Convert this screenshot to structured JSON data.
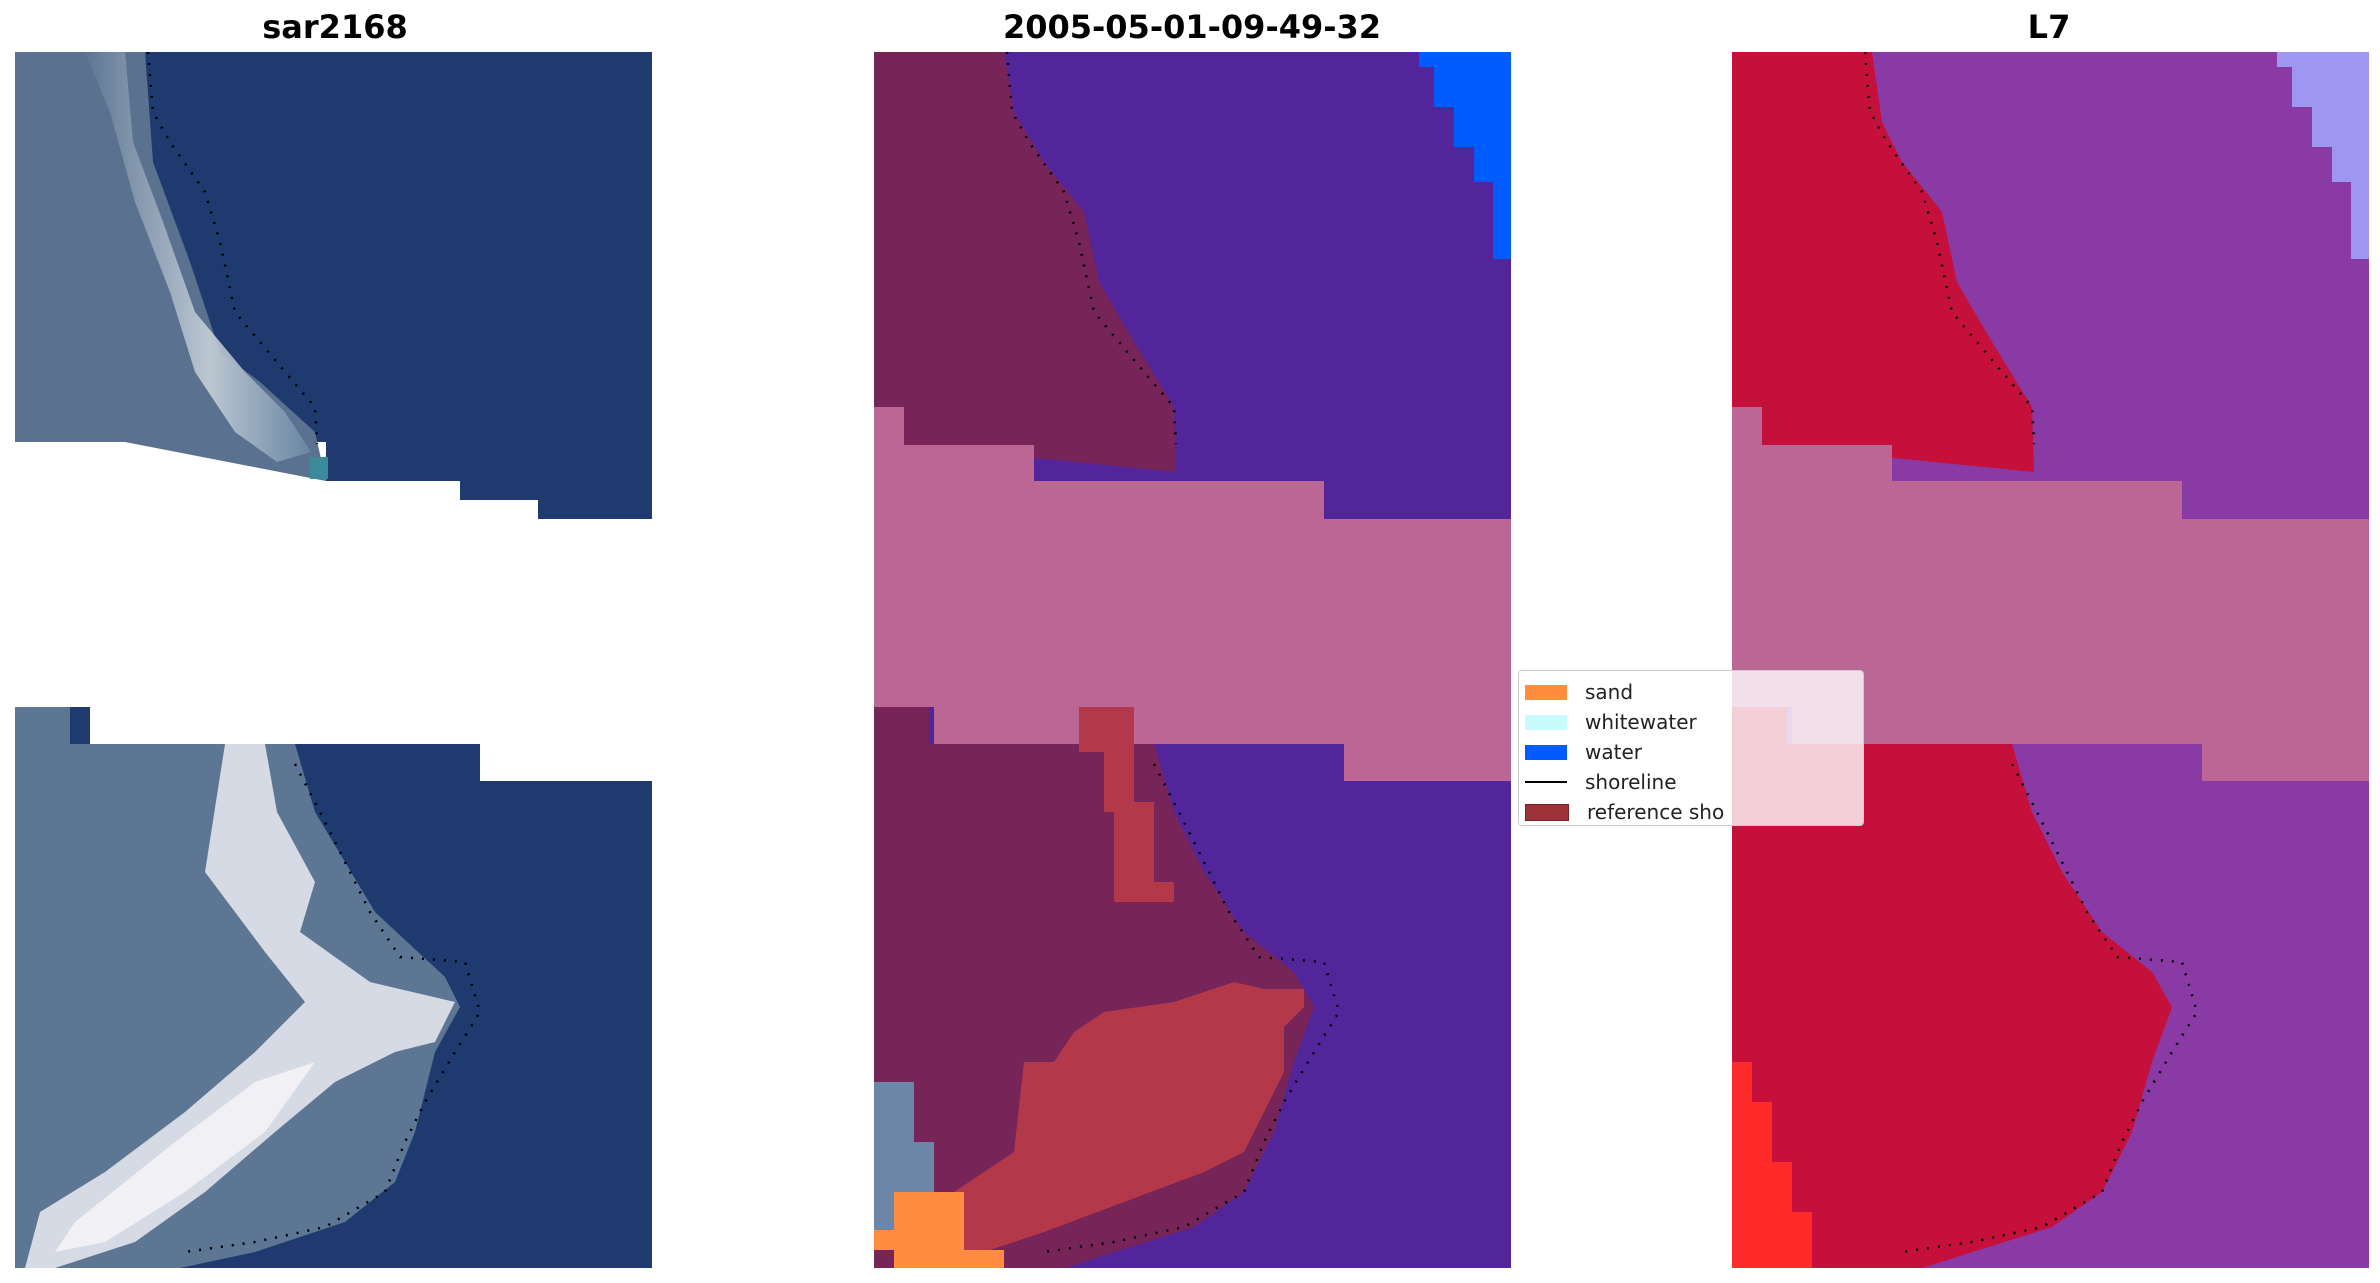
{
  "titles": {
    "left": "sar2168",
    "middle": "2005-05-01-09-49-32",
    "right": "L7"
  },
  "legend": {
    "items": [
      {
        "label": "sand",
        "color": "#ff8c3f",
        "kind": "patch"
      },
      {
        "label": "whitewater",
        "color": "#c8fbfb",
        "kind": "patch"
      },
      {
        "label": "water",
        "color": "#005cff",
        "kind": "patch"
      },
      {
        "label": "shoreline",
        "color": "#000000",
        "kind": "line"
      },
      {
        "label": "reference sho",
        "color": "#9a3238",
        "kind": "patch"
      }
    ]
  },
  "colors": {
    "sea_rgb": "#1f3a6e",
    "land_rgb": "#5d7694",
    "surf_rgb": "#dfe3ea",
    "cloud_band": "#bb6694",
    "land_classified": "#772459",
    "water_classified": "#53259a",
    "sand_classified": "#ff8c3f",
    "reference_classified": "#b3394a",
    "land_ndwi": "#c4103a",
    "water_ndwi": "#8a3aa4",
    "bright_ndwi": "#ff2a2a",
    "shoreline": "#000000"
  }
}
